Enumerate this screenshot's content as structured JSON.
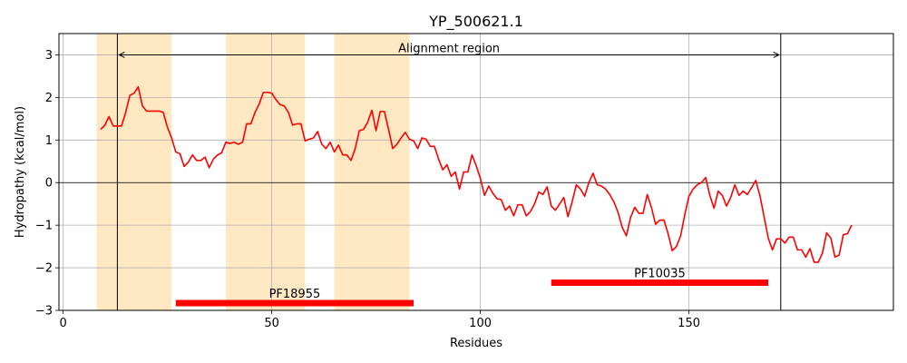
{
  "chart_data": {
    "type": "line",
    "title": "YP_500621.1",
    "xlabel": "Residues",
    "ylabel": "Hydropathy (kcal/mol)",
    "xlim": [
      -1,
      199
    ],
    "ylim": [
      -3,
      3.5
    ],
    "xticks": [
      0,
      50,
      100,
      150
    ],
    "yticks": [
      -3,
      -2,
      -1,
      0,
      1,
      2,
      3
    ],
    "grid": true,
    "line_color": "#ff0000",
    "shade_color": "#ffe8c2",
    "domain_color": "#ff0000",
    "shaded_regions": [
      [
        8,
        26
      ],
      [
        39,
        58
      ],
      [
        65,
        83
      ]
    ],
    "alignment": {
      "label": "Alignment region",
      "start": 13,
      "end": 172,
      "y": 3
    },
    "domains": [
      {
        "name": "PF18955",
        "start": 27,
        "end": 84,
        "y": -2.83
      },
      {
        "name": "PF10035",
        "start": 117,
        "end": 169,
        "y": -2.35
      }
    ],
    "series": [
      {
        "name": "hydropathy",
        "x": [
          9,
          10,
          11,
          12,
          13,
          14,
          15,
          16,
          17,
          18,
          19,
          20,
          21,
          22,
          23,
          24,
          25,
          26,
          27,
          28,
          29,
          30,
          31,
          32,
          33,
          34,
          35,
          36,
          37,
          38,
          39,
          40,
          41,
          42,
          43,
          44,
          45,
          46,
          47,
          48,
          49,
          50,
          51,
          52,
          53,
          54,
          55,
          56,
          57,
          58,
          59,
          60,
          61,
          62,
          63,
          64,
          65,
          66,
          67,
          68,
          69,
          70,
          71,
          72,
          73,
          74,
          75,
          76,
          77,
          78,
          79,
          80,
          81,
          82,
          83,
          84,
          85,
          86,
          87,
          88,
          89,
          90,
          91,
          92,
          93,
          94,
          95,
          96,
          97,
          98,
          99,
          100,
          101,
          102,
          103,
          104,
          105,
          106,
          107,
          108,
          109,
          110,
          111,
          112,
          113,
          114,
          115,
          116,
          117,
          118,
          119,
          120,
          121,
          122,
          123,
          124,
          125,
          126,
          127,
          128,
          129,
          130,
          131,
          132,
          133,
          134,
          135,
          136,
          137,
          138,
          139,
          140,
          141,
          142,
          143,
          144,
          145,
          146,
          147,
          148,
          149,
          150,
          151,
          152,
          153,
          154,
          155,
          156,
          157,
          158,
          159,
          160,
          161,
          162,
          163,
          164,
          165,
          166,
          167,
          168,
          169,
          170,
          171,
          172,
          173,
          174,
          175,
          176,
          177,
          178,
          179,
          180,
          181,
          182,
          183,
          184,
          185,
          186,
          187,
          188,
          189
        ],
        "values": [
          1.25,
          1.35,
          1.55,
          1.33,
          1.33,
          1.33,
          1.65,
          2.05,
          2.1,
          2.25,
          1.8,
          1.68,
          1.68,
          1.68,
          1.68,
          1.65,
          1.3,
          1.05,
          0.72,
          0.68,
          0.38,
          0.48,
          0.65,
          0.52,
          0.52,
          0.6,
          0.35,
          0.55,
          0.65,
          0.7,
          0.95,
          0.92,
          0.95,
          0.9,
          0.95,
          1.38,
          1.38,
          1.65,
          1.85,
          2.12,
          2.12,
          2.1,
          1.95,
          1.83,
          1.8,
          1.65,
          1.35,
          1.38,
          1.38,
          0.98,
          1.02,
          1.05,
          1.2,
          0.9,
          0.8,
          0.95,
          0.72,
          0.88,
          0.65,
          0.65,
          0.52,
          0.8,
          1.22,
          1.25,
          1.42,
          1.7,
          1.22,
          1.67,
          1.67,
          1.25,
          0.8,
          0.9,
          1.05,
          1.18,
          1.02,
          0.98,
          0.8,
          1.05,
          1.02,
          0.85,
          0.85,
          0.55,
          0.3,
          0.42,
          0.15,
          0.25,
          -0.15,
          0.25,
          0.25,
          0.65,
          0.4,
          0.1,
          -0.3,
          -0.08,
          -0.25,
          -0.38,
          -0.4,
          -0.65,
          -0.55,
          -0.78,
          -0.52,
          -0.52,
          -0.78,
          -0.68,
          -0.5,
          -0.22,
          -0.28,
          -0.1,
          -0.55,
          -0.65,
          -0.5,
          -0.35,
          -0.8,
          -0.45,
          -0.05,
          -0.15,
          -0.32,
          0.0,
          0.22,
          -0.05,
          -0.08,
          -0.15,
          -0.28,
          -0.45,
          -0.7,
          -1.05,
          -1.25,
          -0.82,
          -0.58,
          -0.72,
          -0.72,
          -0.28,
          -0.58,
          -0.98,
          -0.88,
          -0.88,
          -1.2,
          -1.6,
          -1.5,
          -1.25,
          -0.75,
          -0.32,
          -0.15,
          -0.05,
          0.0,
          0.12,
          -0.3,
          -0.6,
          -0.2,
          -0.3,
          -0.55,
          -0.35,
          -0.05,
          -0.3,
          -0.2,
          -0.28,
          -0.12,
          0.05,
          -0.3,
          -0.8,
          -1.3,
          -1.58,
          -1.32,
          -1.32,
          -1.42,
          -1.28,
          -1.28,
          -1.58,
          -1.58,
          -1.75,
          -1.55,
          -1.87,
          -1.87,
          -1.65,
          -1.18,
          -1.3,
          -1.75,
          -1.7,
          -1.22,
          -1.2,
          -1.0
        ]
      }
    ]
  }
}
